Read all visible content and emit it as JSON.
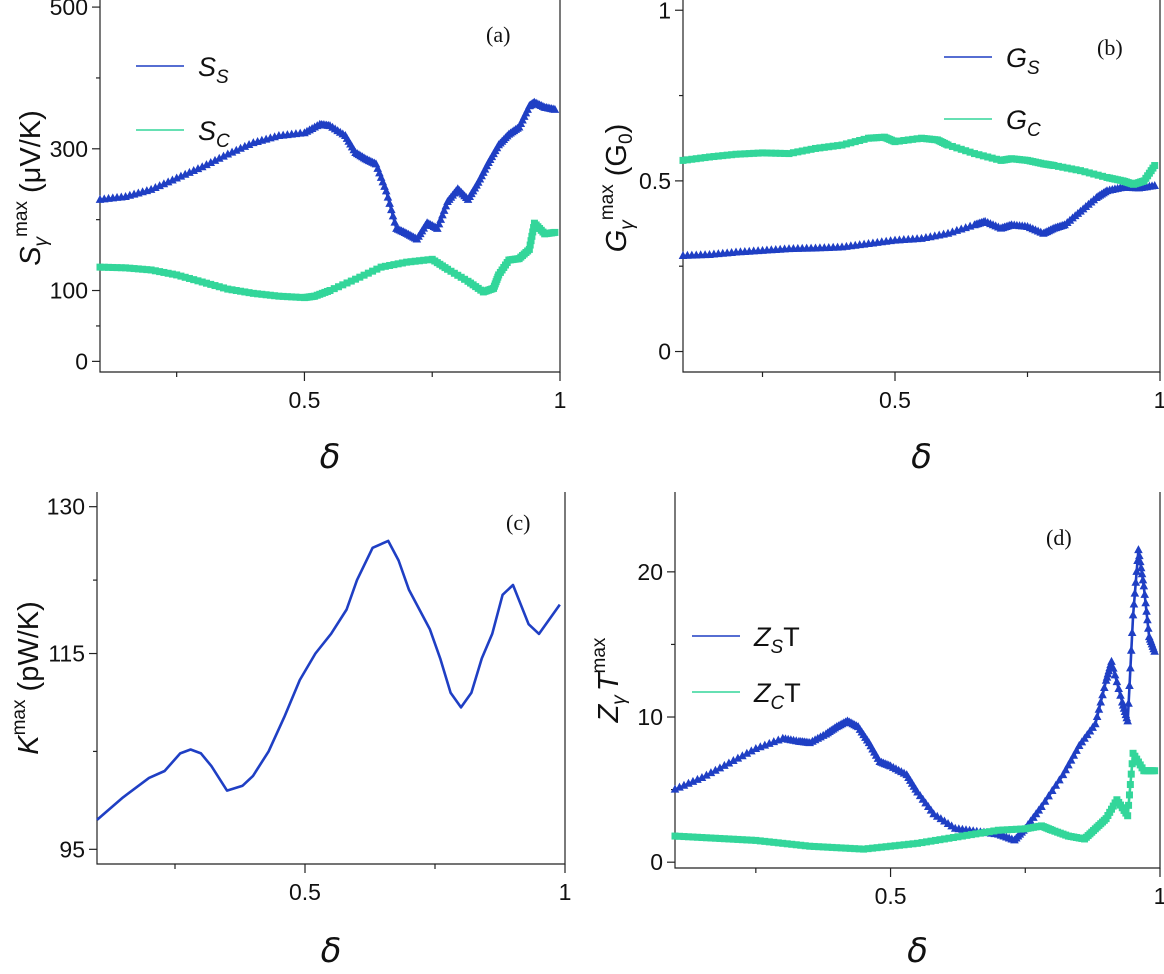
{
  "colors": {
    "blue": "#1f3fc4",
    "green": "#33d69a",
    "axis": "#222222"
  },
  "chart_data": [
    {
      "type": "line",
      "panel_label": "(a)",
      "xlabel": "δ",
      "ylabel": {
        "main": "S",
        "sub": "γ",
        "sup": "max",
        "unit": " (μV/K)"
      },
      "xlim": [
        0.1,
        1.0
      ],
      "ylim": [
        -15,
        510
      ],
      "xticks": [
        0.5,
        1
      ],
      "xtick_labels": [
        "0.5",
        "1"
      ],
      "yticks": [
        0,
        100,
        300,
        500
      ],
      "ytick_labels": [
        "0",
        "100",
        "300",
        "500"
      ],
      "legend": {
        "position": "top-left",
        "entries": [
          {
            "main": "S",
            "sub": "S"
          },
          {
            "main": "S",
            "sub": "C"
          }
        ]
      },
      "series": [
        {
          "name": "S_S",
          "color": "blue",
          "marker": "triangle",
          "x": [
            0.1,
            0.15,
            0.2,
            0.25,
            0.3,
            0.35,
            0.4,
            0.45,
            0.5,
            0.53,
            0.55,
            0.58,
            0.6,
            0.62,
            0.64,
            0.66,
            0.68,
            0.7,
            0.72,
            0.74,
            0.76,
            0.78,
            0.8,
            0.82,
            0.84,
            0.86,
            0.88,
            0.9,
            0.92,
            0.94,
            0.95,
            0.97,
            0.99
          ],
          "y": [
            228,
            232,
            242,
            258,
            274,
            292,
            308,
            318,
            322,
            334,
            332,
            318,
            294,
            285,
            278,
            240,
            187,
            180,
            172,
            195,
            187,
            225,
            243,
            228,
            252,
            280,
            305,
            320,
            330,
            360,
            365,
            358,
            355
          ]
        },
        {
          "name": "S_C",
          "color": "green",
          "marker": "square",
          "x": [
            0.1,
            0.15,
            0.2,
            0.25,
            0.3,
            0.35,
            0.4,
            0.45,
            0.5,
            0.52,
            0.55,
            0.6,
            0.65,
            0.7,
            0.75,
            0.78,
            0.82,
            0.85,
            0.87,
            0.88,
            0.9,
            0.92,
            0.94,
            0.95,
            0.97,
            0.99
          ],
          "y": [
            133,
            132,
            129,
            122,
            112,
            102,
            96,
            92,
            90,
            92,
            100,
            116,
            133,
            140,
            144,
            130,
            113,
            98,
            103,
            122,
            143,
            145,
            158,
            195,
            180,
            182
          ]
        }
      ]
    },
    {
      "type": "line",
      "panel_label": "(b)",
      "xlabel": "δ",
      "ylabel": {
        "main": "G",
        "sub": "γ",
        "sup": "max",
        "unit": " (G",
        "unit_sub": "0",
        "unit_end": ")"
      },
      "xlim": [
        0.1,
        1.0
      ],
      "ylim": [
        -0.06,
        1.03
      ],
      "xticks": [
        0.5,
        1
      ],
      "xtick_labels": [
        "0.5",
        "1"
      ],
      "yticks": [
        0,
        0.5,
        1
      ],
      "ytick_labels": [
        "0",
        "0.5",
        "1"
      ],
      "legend": {
        "position": "top-right",
        "entries": [
          {
            "main": "G",
            "sub": "S"
          },
          {
            "main": "G",
            "sub": "C"
          }
        ]
      },
      "series": [
        {
          "name": "G_S",
          "color": "blue",
          "marker": "triangle",
          "x": [
            0.1,
            0.15,
            0.2,
            0.25,
            0.3,
            0.35,
            0.4,
            0.45,
            0.5,
            0.55,
            0.6,
            0.65,
            0.67,
            0.7,
            0.72,
            0.75,
            0.78,
            0.8,
            0.82,
            0.85,
            0.88,
            0.9,
            0.93,
            0.96,
            0.99
          ],
          "y": [
            0.28,
            0.283,
            0.29,
            0.295,
            0.3,
            0.302,
            0.305,
            0.315,
            0.325,
            0.33,
            0.345,
            0.37,
            0.38,
            0.36,
            0.37,
            0.365,
            0.345,
            0.36,
            0.37,
            0.41,
            0.45,
            0.47,
            0.48,
            0.478,
            0.485
          ]
        },
        {
          "name": "G_C",
          "color": "green",
          "marker": "square",
          "x": [
            0.1,
            0.15,
            0.2,
            0.25,
            0.3,
            0.35,
            0.4,
            0.45,
            0.48,
            0.5,
            0.55,
            0.58,
            0.6,
            0.65,
            0.7,
            0.72,
            0.75,
            0.78,
            0.8,
            0.85,
            0.9,
            0.93,
            0.95,
            0.97,
            0.99
          ],
          "y": [
            0.56,
            0.57,
            0.578,
            0.582,
            0.58,
            0.595,
            0.605,
            0.625,
            0.628,
            0.615,
            0.625,
            0.62,
            0.605,
            0.58,
            0.56,
            0.565,
            0.56,
            0.55,
            0.545,
            0.53,
            0.51,
            0.5,
            0.49,
            0.5,
            0.545
          ]
        }
      ]
    },
    {
      "type": "line",
      "panel_label": "(c)",
      "xlabel": "δ",
      "ylabel": {
        "main": "K",
        "sub": "",
        "sup": "max",
        "unit": " (pW/K)"
      },
      "xlim": [
        0.1,
        1.0
      ],
      "ylim": [
        93.5,
        131.5
      ],
      "xticks": [
        0.5,
        1
      ],
      "xtick_labels": [
        "0.5",
        "1"
      ],
      "yticks": [
        95,
        115,
        130
      ],
      "ytick_labels": [
        "95",
        "115",
        "130"
      ],
      "legend": null,
      "series": [
        {
          "name": "",
          "color": "blue",
          "marker": "none",
          "x": [
            0.1,
            0.15,
            0.2,
            0.23,
            0.26,
            0.28,
            0.3,
            0.32,
            0.35,
            0.38,
            0.4,
            0.43,
            0.46,
            0.49,
            0.52,
            0.55,
            0.58,
            0.6,
            0.63,
            0.66,
            0.68,
            0.7,
            0.72,
            0.74,
            0.76,
            0.78,
            0.8,
            0.82,
            0.84,
            0.86,
            0.88,
            0.9,
            0.93,
            0.95,
            0.97,
            0.99
          ],
          "y": [
            98,
            100.3,
            102.3,
            103,
            104.8,
            105.2,
            104.8,
            103.5,
            101,
            101.5,
            102.5,
            105,
            108.5,
            112.3,
            115,
            117,
            119.5,
            122.5,
            125.8,
            126.5,
            124.5,
            121.5,
            119.5,
            117.5,
            114.5,
            111,
            109.5,
            111,
            114.5,
            117,
            121,
            122,
            118,
            117,
            118.5,
            120
          ]
        }
      ]
    },
    {
      "type": "line",
      "panel_label": "(d)",
      "xlabel": "δ",
      "ylabel": {
        "main": "Z",
        "sub": "γ",
        "mid": "T",
        "sup": "max"
      },
      "xlim": [
        0.1,
        1.0
      ],
      "ylim": [
        -0.4,
        25.5
      ],
      "xticks": [
        0.5,
        1
      ],
      "xtick_labels": [
        "0.5",
        "1"
      ],
      "yticks": [
        0,
        10,
        20
      ],
      "ytick_labels": [
        "0",
        "10",
        "20"
      ],
      "legend": {
        "position": "left",
        "entries": [
          {
            "main": "Z",
            "sub": "S",
            "end": "T"
          },
          {
            "main": "Z",
            "sub": "C",
            "end": "T"
          }
        ]
      },
      "series": [
        {
          "name": "Z_S T",
          "color": "blue",
          "marker": "triangle",
          "x": [
            0.1,
            0.15,
            0.2,
            0.25,
            0.3,
            0.33,
            0.35,
            0.38,
            0.4,
            0.42,
            0.44,
            0.46,
            0.48,
            0.5,
            0.53,
            0.55,
            0.58,
            0.62,
            0.66,
            0.7,
            0.73,
            0.75,
            0.78,
            0.82,
            0.85,
            0.88,
            0.9,
            0.91,
            0.93,
            0.94,
            0.95,
            0.96,
            0.97,
            0.98,
            0.99
          ],
          "y": [
            5,
            5.8,
            6.8,
            7.8,
            8.5,
            8.3,
            8.2,
            8.8,
            9.3,
            9.7,
            9.3,
            8.2,
            6.9,
            6.6,
            6,
            4.8,
            3.3,
            2.3,
            2.1,
            1.9,
            1.5,
            2.3,
            3.8,
            6,
            8,
            9.5,
            12.5,
            13.8,
            11,
            9.7,
            17,
            21.5,
            19,
            15.5,
            14.5
          ]
        },
        {
          "name": "Z_C T",
          "color": "green",
          "marker": "square",
          "x": [
            0.1,
            0.15,
            0.2,
            0.25,
            0.3,
            0.35,
            0.4,
            0.45,
            0.5,
            0.55,
            0.6,
            0.65,
            0.7,
            0.75,
            0.78,
            0.8,
            0.83,
            0.86,
            0.88,
            0.9,
            0.92,
            0.94,
            0.95,
            0.97,
            0.99
          ],
          "y": [
            1.8,
            1.7,
            1.6,
            1.5,
            1.3,
            1.1,
            1,
            0.9,
            1.1,
            1.3,
            1.6,
            1.9,
            2.2,
            2.3,
            2.5,
            2.2,
            1.8,
            1.6,
            2.3,
            3,
            4.3,
            3.2,
            7.5,
            6.3,
            6.3
          ]
        }
      ]
    }
  ]
}
